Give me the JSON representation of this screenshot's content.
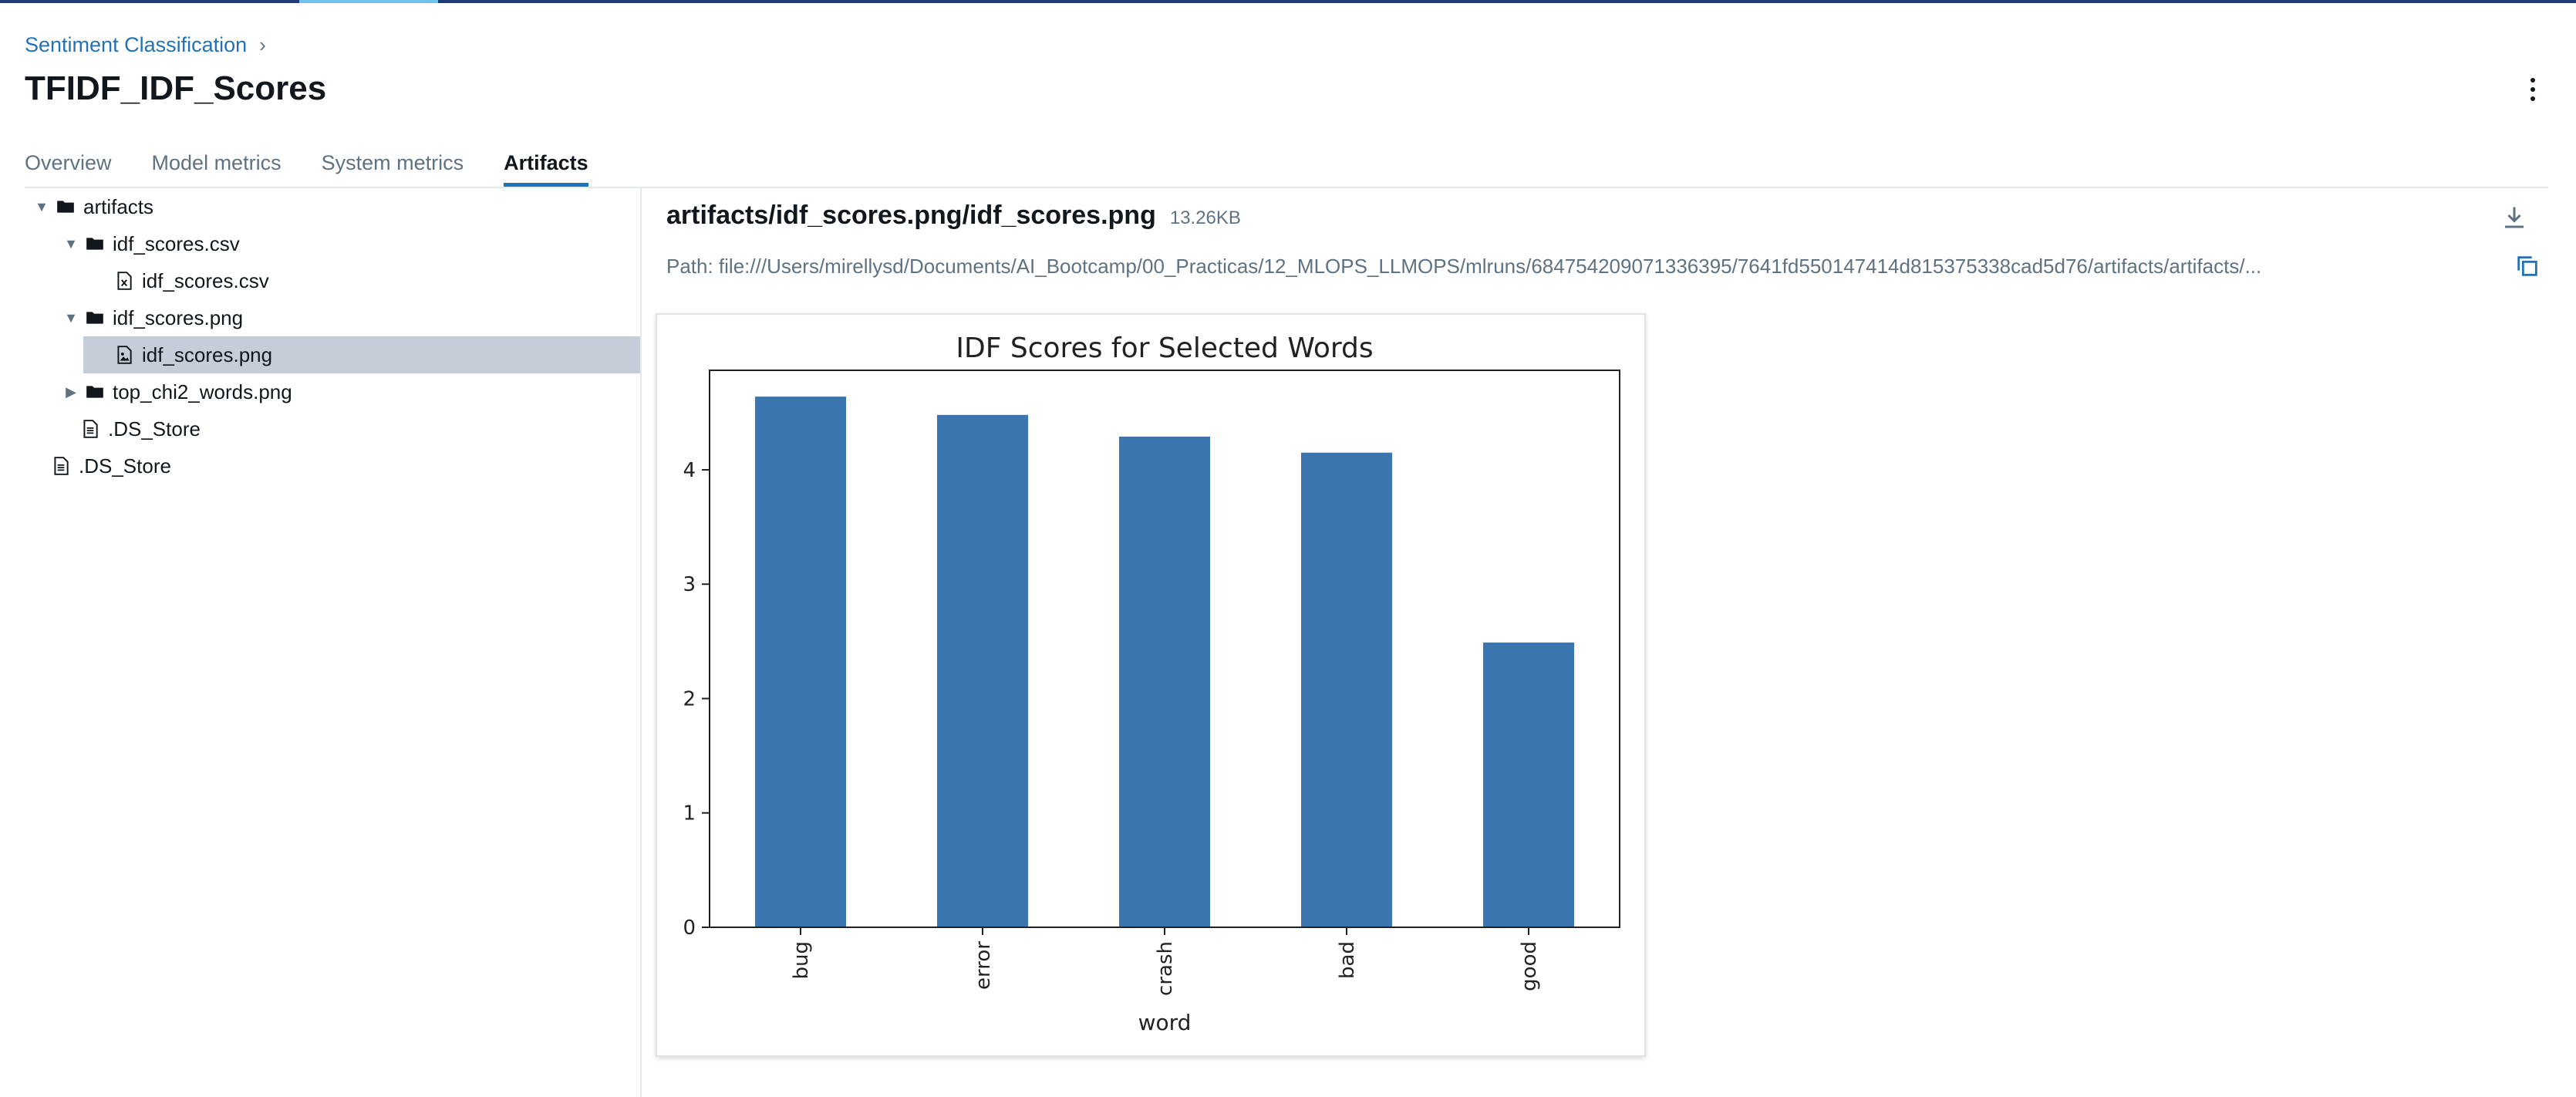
{
  "breadcrumb": {
    "parent": "Sentiment Classification",
    "separator": "›"
  },
  "page_title": "TFIDF_IDF_Scores",
  "tabs": [
    {
      "label": "Overview",
      "active": false
    },
    {
      "label": "Model metrics",
      "active": false
    },
    {
      "label": "System metrics",
      "active": false
    },
    {
      "label": "Artifacts",
      "active": true
    }
  ],
  "tree": [
    {
      "label": "artifacts",
      "type": "folder",
      "expanded": true,
      "caret": "▼"
    },
    {
      "label": "idf_scores.csv",
      "type": "folder",
      "expanded": true,
      "caret": "▼"
    },
    {
      "label": "idf_scores.csv",
      "type": "csv-file"
    },
    {
      "label": "idf_scores.png",
      "type": "folder",
      "expanded": true,
      "caret": "▼"
    },
    {
      "label": "idf_scores.png",
      "type": "image-file",
      "selected": true
    },
    {
      "label": "top_chi2_words.png",
      "type": "folder",
      "expanded": false,
      "caret": "▶"
    },
    {
      "label": ".DS_Store",
      "type": "file"
    },
    {
      "label": ".DS_Store",
      "type": "file"
    }
  ],
  "viewer": {
    "file_name": "artifacts/idf_scores.png/idf_scores.png",
    "file_size": "13.26KB",
    "path": "Path: file:///Users/mirellysd/Documents/AI_Bootcamp/00_Practicas/12_MLOPS_LLMOPS/mlruns/684754209071336395/7641fd550147414d815375338cad5d76/artifacts/artifacts/..."
  },
  "colors": {
    "accent": "#2272b4",
    "bar": "#3a75b0",
    "selected_row": "#c4cdd8"
  },
  "chart_data": {
    "type": "bar",
    "title": "IDF Scores for Selected Words",
    "xlabel": "word",
    "ylabel": "",
    "categories": [
      "bug",
      "error",
      "crash",
      "bad",
      "good"
    ],
    "values": [
      4.64,
      4.48,
      4.29,
      4.15,
      2.49
    ],
    "ylim": [
      0,
      4.87
    ],
    "yticks": [
      0,
      1,
      2,
      3,
      4
    ],
    "grid": false,
    "legend": "none"
  }
}
